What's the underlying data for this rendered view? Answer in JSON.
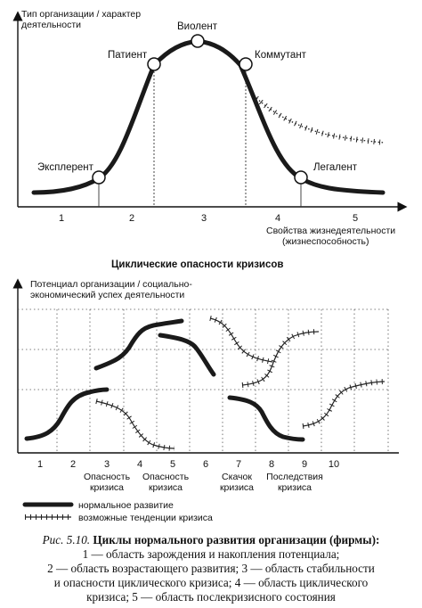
{
  "top_diagram": {
    "y_axis_label_1": "Тип организации / характер",
    "y_axis_label_2": "деятельности",
    "x_axis_label_1": "Свойства жизнедеятельности",
    "x_axis_label_2": "(жизнеспособность)",
    "stages": [
      {
        "name": "Эксплерент"
      },
      {
        "name": "Патиент"
      },
      {
        "name": "Виолент"
      },
      {
        "name": "Коммутант"
      },
      {
        "name": "Легалент"
      }
    ],
    "regions": [
      "1",
      "2",
      "3",
      "4",
      "5"
    ]
  },
  "bottom_diagram": {
    "title": "Циклические опасности кризисов",
    "y_axis_label_1": "Потенциал организации / социально-",
    "y_axis_label_2": "экономический успех деятельности",
    "x_ticks": [
      "1",
      "2",
      "3",
      "4",
      "5",
      "6",
      "7",
      "8",
      "9",
      "10"
    ],
    "annotations": [
      {
        "line1": "Опасность",
        "line2": "кризиса"
      },
      {
        "line1": "Опасность",
        "line2": "кризиса"
      },
      {
        "line1": "Скачок",
        "line2": "кризиса"
      },
      {
        "line1": "Последствия",
        "line2": "кризиса"
      }
    ]
  },
  "legend": {
    "normal": "нормальное развитие",
    "crisis": "возможные тенденции кризиса"
  },
  "caption": {
    "fig_label": "Рис. 5.10.",
    "title": "Циклы нормального развития организации (фирмы):",
    "line2": "1 — область зарождения и накопления потенциала;",
    "line3": "2 — область возрастающего развития; 3 — область стабильности",
    "line4": "и опасности циклического кризиса; 4 — область циклического",
    "line5": "кризиса; 5 — область послекризисного состояния"
  },
  "colors": {
    "ink": "#111111",
    "normal_line": "#1a1a1a",
    "crisis_line": "#222222",
    "grid": "#555555"
  }
}
